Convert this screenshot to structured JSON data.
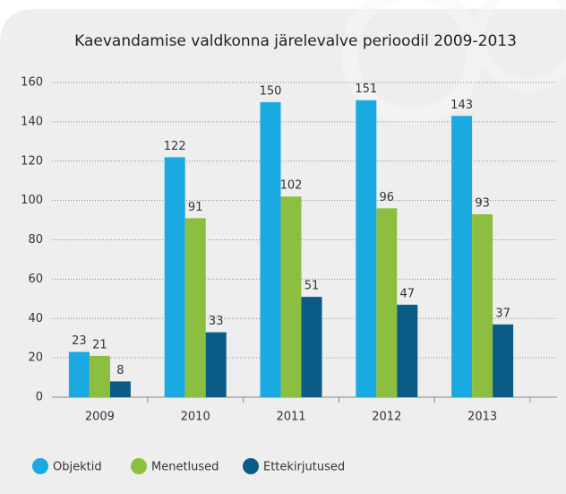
{
  "chart_data": {
    "type": "bar",
    "title": "Kaevandamise valdkonna järelevalve perioodil 2009-2013",
    "categories": [
      "2009",
      "2010",
      "2011",
      "2012",
      "2013"
    ],
    "series": [
      {
        "name": "Objektid",
        "color": "#1ba9e1",
        "values": [
          23,
          122,
          150,
          151,
          143
        ]
      },
      {
        "name": "Menetlused",
        "color": "#8cbf3f",
        "values": [
          21,
          91,
          102,
          96,
          93
        ]
      },
      {
        "name": "Ettekirjutused",
        "color": "#0b5b87",
        "values": [
          8,
          33,
          51,
          47,
          37
        ]
      }
    ],
    "ylim": [
      0,
      160
    ],
    "yticks": [
      0,
      20,
      40,
      60,
      80,
      100,
      120,
      140,
      160
    ],
    "grid": true,
    "legend": "bottom"
  }
}
